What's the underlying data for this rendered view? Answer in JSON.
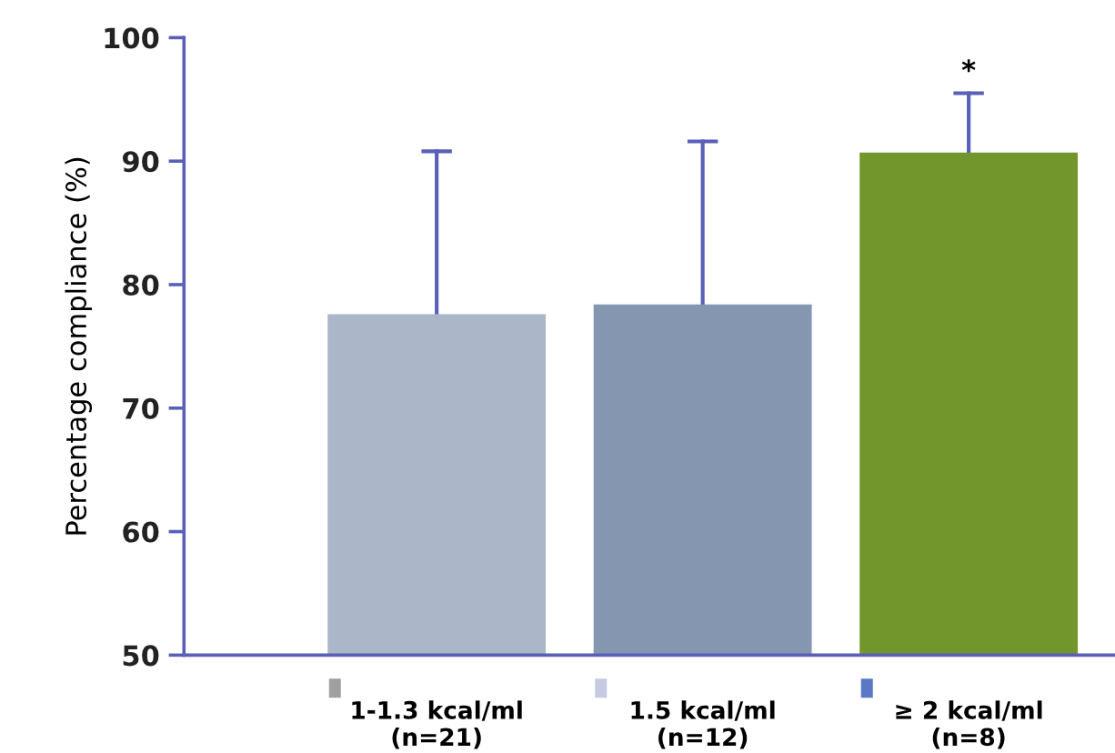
{
  "chart_data": {
    "type": "bar",
    "ylabel": "Percentage compliance (%)",
    "categories": [
      "1-1.3 kcal/ml\n(n=21)",
      "1.5 kcal/ml\n(n=12)",
      "≥ 2 kcal/ml\n(n=8)"
    ],
    "values": [
      77.6,
      78.4,
      90.7
    ],
    "colors": [
      "#abb6c9",
      "#8496b0",
      "#72962b"
    ],
    "errors": [
      [
        77.6,
        90.8
      ],
      [
        78.4,
        91.6
      ],
      [
        90.7,
        95.5
      ]
    ],
    "ylim": [
      50,
      100
    ],
    "yticks": [
      50,
      60,
      70,
      80,
      90,
      100
    ],
    "grid": false,
    "legend": false,
    "annotations": [
      {
        "text": "*",
        "x": "≥ 2 kcal/ml\n(n=8)",
        "y": 95.5
      }
    ]
  }
}
